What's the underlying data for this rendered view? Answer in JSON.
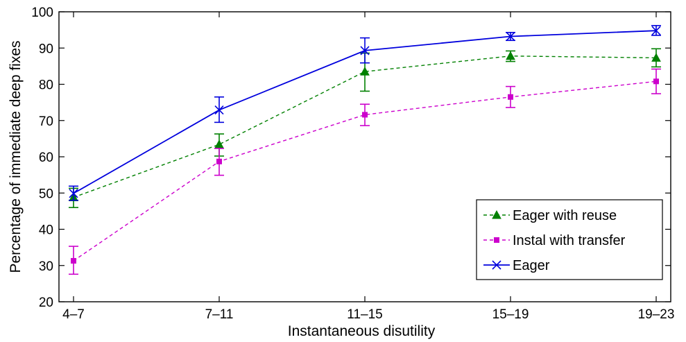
{
  "chart_data": {
    "type": "line",
    "categories": [
      "4–7",
      "7–11",
      "11–15",
      "15–19",
      "19–23"
    ],
    "xlabel": "Instantaneous disutility",
    "ylabel": "Percentage of immediate deep fixes",
    "ylim": [
      20,
      100
    ],
    "yticks": [
      20,
      30,
      40,
      50,
      60,
      70,
      80,
      90,
      100
    ],
    "grid": false,
    "legend_position": "bottom-right",
    "series": [
      {
        "name": "Eager with reuse",
        "color": "#008000",
        "line_style": "dashed",
        "marker": "triangle",
        "values": [
          48.8,
          63.4,
          83.5,
          87.8,
          87.3
        ],
        "error_low": [
          46.0,
          60.2,
          78.1,
          86.3,
          84.8
        ],
        "error_high": [
          51.3,
          66.3,
          88.6,
          89.2,
          89.8
        ]
      },
      {
        "name": "Instal with transfer",
        "color": "#CC00CC",
        "line_style": "dashed",
        "marker": "square",
        "values": [
          31.3,
          58.7,
          71.6,
          76.5,
          80.8
        ],
        "error_low": [
          27.6,
          54.9,
          68.6,
          73.6,
          77.4
        ],
        "error_high": [
          35.3,
          62.3,
          74.5,
          79.4,
          84.2
        ]
      },
      {
        "name": "Eager",
        "color": "#0000DD",
        "line_style": "solid",
        "marker": "x",
        "values": [
          49.9,
          72.9,
          89.3,
          93.2,
          94.8
        ],
        "error_low": [
          48.0,
          69.5,
          85.9,
          92.1,
          93.5
        ],
        "error_high": [
          51.9,
          76.5,
          92.8,
          94.3,
          96.2
        ]
      }
    ]
  }
}
